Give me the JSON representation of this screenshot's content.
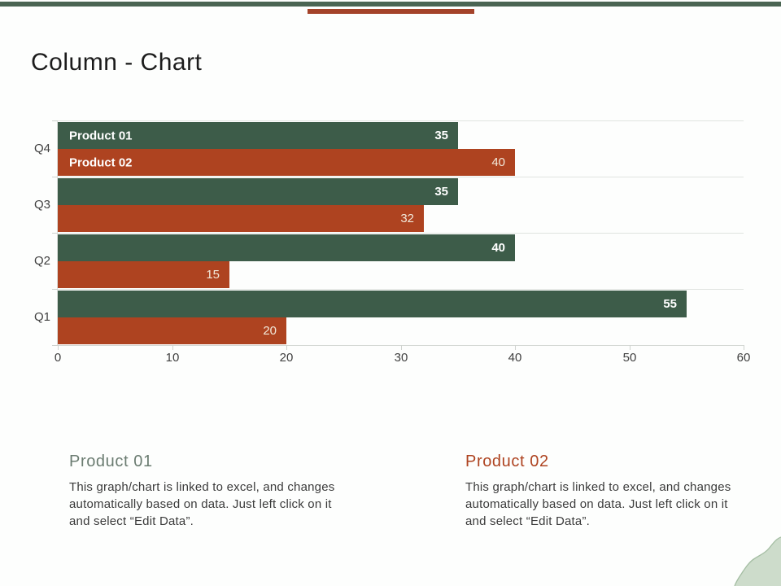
{
  "page": {
    "title": "Column - Chart"
  },
  "decor": {
    "top_bar_color": "#4a6553",
    "top_accent_color": "#a4432a",
    "corner_blob_fill": "#cddccb",
    "corner_blob_outline": "#a3bda2"
  },
  "chart_data": {
    "type": "bar",
    "orientation": "horizontal",
    "title": "",
    "categories": [
      "Q4",
      "Q3",
      "Q2",
      "Q1"
    ],
    "series": [
      {
        "name": "Product 01",
        "color": "#3d5c49",
        "values": [
          35,
          35,
          40,
          55
        ]
      },
      {
        "name": "Product 02",
        "color": "#ae4320",
        "values": [
          40,
          32,
          15,
          20
        ]
      }
    ],
    "xlabel": "",
    "ylabel": "",
    "xlim": [
      0,
      60
    ],
    "x_ticks": [
      0,
      10,
      20,
      30,
      40,
      50,
      60
    ],
    "grid": false,
    "value_labels": "inside-end",
    "legend": "series names shown inside topmost bars"
  },
  "footnotes": [
    {
      "heading": "Product 01",
      "heading_color": "#6b7c71",
      "body": "This graph/chart is linked to excel, and changes automatically based on data. Just left click on it and select “Edit Data”."
    },
    {
      "heading": "Product 02",
      "heading_color": "#ae4320",
      "body": "This graph/chart is linked to excel, and changes automatically based on data. Just left click on it and select “Edit Data”."
    }
  ]
}
